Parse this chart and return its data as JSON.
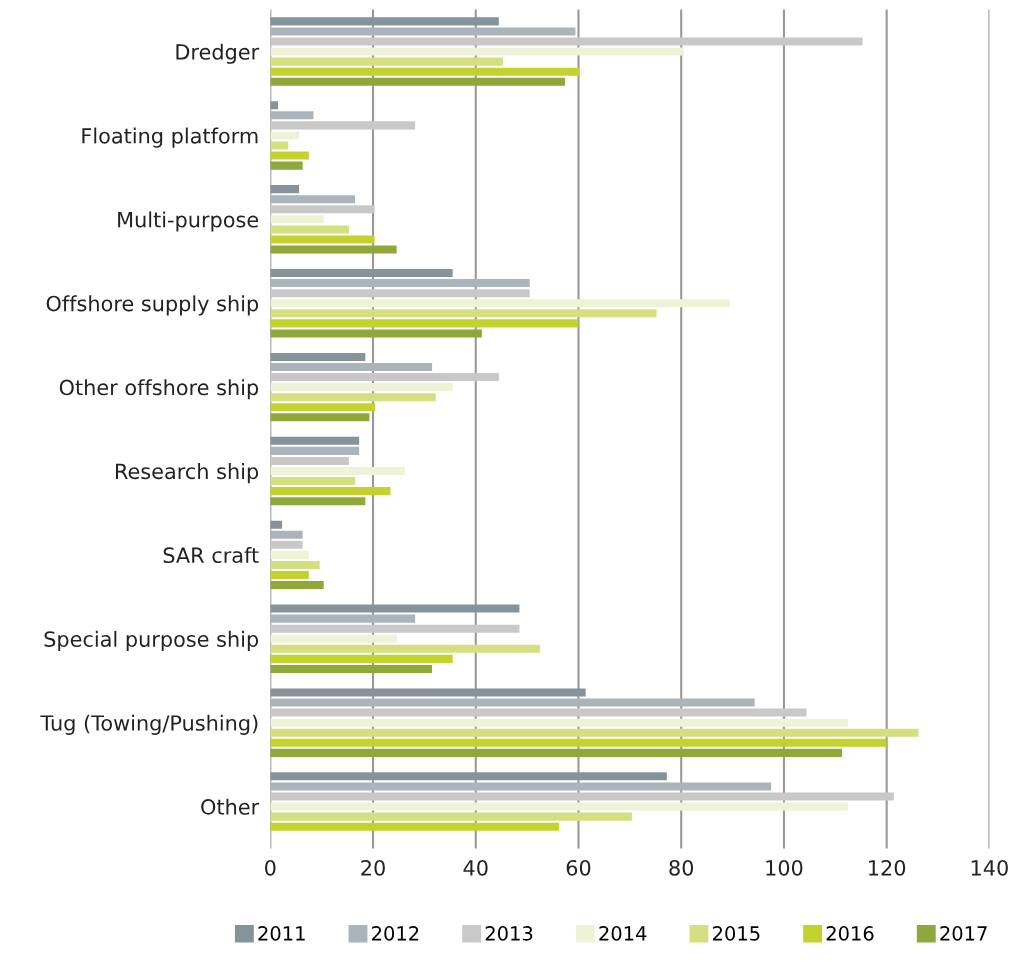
{
  "chart_data": {
    "type": "bar",
    "orientation": "horizontal",
    "categories": [
      "Dredger",
      "Floating platform",
      "Multi-purpose",
      "Offshore supply ship",
      "Other offshore ship",
      "Research ship",
      "SAR craft",
      "Special purpose ship",
      "Tug (Towing/Pushing)",
      "Other"
    ],
    "series": [
      {
        "name": "2011",
        "color": "#87939b",
        "values": [
          44.5,
          1.5,
          5.6,
          35.5,
          18.5,
          17.3,
          2.3,
          48.5,
          61.4,
          77.2
        ]
      },
      {
        "name": "2012",
        "color": "#aab4ba",
        "values": [
          59.4,
          8.4,
          16.5,
          50.5,
          31.5,
          17.3,
          6.3,
          28.2,
          94.3,
          97.5
        ]
      },
      {
        "name": "2013",
        "color": "#c8c8c8",
        "values": [
          115.3,
          28.2,
          20.3,
          50.5,
          44.5,
          15.3,
          6.3,
          48.5,
          104.4,
          121.4
        ]
      },
      {
        "name": "2014",
        "color": "#eef3d8",
        "values": [
          80.5,
          5.6,
          10.4,
          89.4,
          35.5,
          26.2,
          7.5,
          24.6,
          112.5,
          112.5
        ]
      },
      {
        "name": "2015",
        "color": "#d6df7f",
        "values": [
          45.3,
          3.5,
          15.3,
          75.2,
          32.2,
          16.5,
          9.6,
          52.5,
          126.2,
          70.4
        ]
      },
      {
        "name": "2016",
        "color": "#c3d22e",
        "values": [
          60.2,
          7.5,
          20.3,
          60.0,
          20.4,
          23.4,
          7.5,
          35.5,
          120.0,
          56.2
        ]
      },
      {
        "name": "2017",
        "color": "#8fa83b",
        "values": [
          57.4,
          6.3,
          24.6,
          41.2,
          19.3,
          18.5,
          10.4,
          31.5,
          111.3,
          null
        ]
      }
    ],
    "xlim": [
      0,
      140
    ],
    "xticks": [
      0,
      20,
      40,
      60,
      80,
      100,
      120,
      140
    ],
    "grid": "x",
    "legend": "bottom"
  }
}
